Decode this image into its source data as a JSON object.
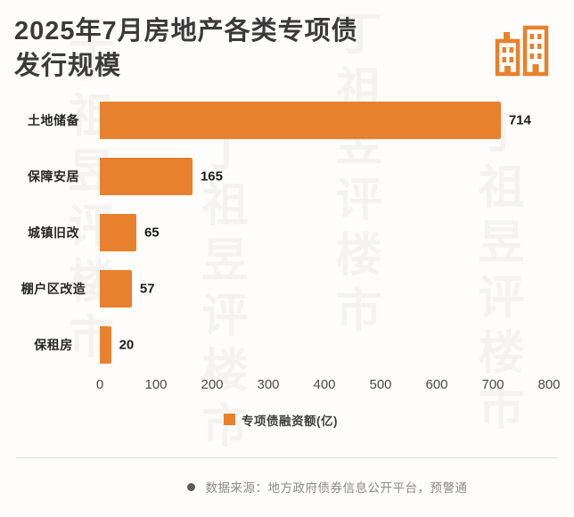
{
  "header": {
    "title_line1": "2025年7月房地产各类专项债",
    "title_line2": "发行规模"
  },
  "watermark": "丁祖昱评楼市",
  "chart_data": {
    "type": "bar",
    "orientation": "horizontal",
    "title": "2025年7月房地产各类专项债发行规模",
    "categories": [
      "土地储备",
      "保障安居",
      "城镇旧改",
      "棚户区改造",
      "保租房"
    ],
    "values": [
      714,
      165,
      65,
      57,
      20
    ],
    "xlim": [
      0,
      800
    ],
    "x_ticks": [
      0,
      100,
      200,
      300,
      400,
      500,
      600,
      700,
      800
    ],
    "legend": "专项债融资额(亿)",
    "legend_position": "bottom-center",
    "grid": false,
    "bar_color": "#E8812D"
  },
  "footer": {
    "source": "数据来源：地方政府债券信息公开平台，预警通"
  }
}
